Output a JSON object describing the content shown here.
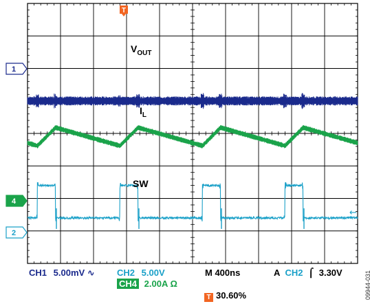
{
  "chart_data": {
    "type": "line",
    "title": "",
    "xlabel": "",
    "ylabel": "",
    "grid": true,
    "divisions": {
      "x": 10,
      "y": 8
    },
    "timebase": "M 400ns",
    "x": [
      0,
      400,
      800,
      1200,
      1600,
      2000,
      2400,
      2800,
      3200,
      3600,
      4000
    ],
    "x_unit": "ns",
    "series": [
      {
        "name": "VOUT",
        "name_main": "V",
        "name_sub": "OUT",
        "channel_marker": "1",
        "color": "#1a2a8c",
        "kind": "noise_band",
        "offset_div": 1.0,
        "band_div": 0.28
      },
      {
        "name": "IL",
        "name_main": "I",
        "name_sub": "L",
        "channel_marker": "",
        "color": "#1aa34a",
        "kind": "triangle",
        "offset_div": -0.1,
        "amplitude_div": 0.28,
        "period_ns": 1000,
        "peak_ns": [
          180,
          1180,
          2180,
          3180
        ]
      },
      {
        "name": "SW",
        "name_main": "SW",
        "name_sub": "",
        "channel_marker": "4",
        "color": "#1aa0c8",
        "kind": "pulse",
        "low_div": -2.6,
        "high_div": -1.6,
        "rise_ns": [
          120,
          1120,
          2120,
          3120
        ],
        "fall_ns": [
          340,
          1340,
          2340,
          3340
        ]
      }
    ],
    "left_markers": [
      {
        "label": "1",
        "level_div": 1.0,
        "style": "outline",
        "color": "#1a2a8c"
      },
      {
        "label": "4",
        "level_div": -1.95,
        "style": "filled",
        "color": "#1aa34a"
      },
      {
        "label": "2",
        "level_div": -2.6,
        "style": "outline",
        "color": "#1aa0c8"
      }
    ],
    "trigger": {
      "marker": "T",
      "color": "#f26522",
      "position_ns": 1100
    },
    "right_marker": {
      "symbol": "←",
      "color": "#1aa0c8",
      "level_div": -2.15
    }
  },
  "readouts": {
    "ch1_label": "CH1",
    "ch1_value": "5.00mV",
    "ch1_coupling": "∿",
    "ch2_label": "CH2",
    "ch2_value": "5.00V",
    "ch4_label": "CH4",
    "ch4_value": "2.00A Ω",
    "timebase": "M 400ns",
    "trigger_mode": "A",
    "trigger_channel": "CH2",
    "trigger_slope": "⌠",
    "trigger_level": "3.30V",
    "trigger_marker": "T",
    "trigger_position": "30.60%"
  },
  "figure_id": "09944-031"
}
